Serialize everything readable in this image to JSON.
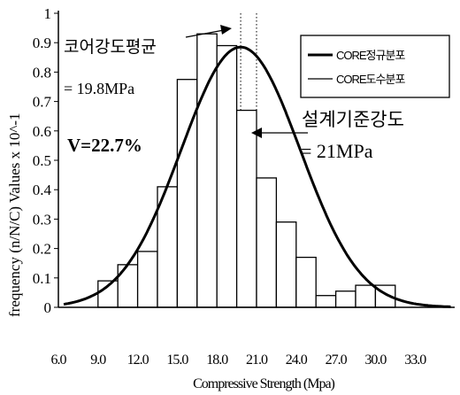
{
  "chart_data": {
    "type": "bar",
    "xlabel": "Compressive Strength (Mpa)",
    "ylabel": "frequency (n/N/C) Values x 10^-1",
    "ylim": [
      0,
      1
    ],
    "yticks": [
      "0",
      "0.1",
      "0.2",
      "0.3",
      "0.4",
      "0.5",
      "0.6",
      "0.7",
      "0.8",
      "0.9",
      "1"
    ],
    "xlim": [
      6,
      36
    ],
    "xticks": [
      "6.0",
      "9.0",
      "12.0",
      "15.0",
      "18.0",
      "21.0",
      "24.0",
      "27.0",
      "30.0",
      "33.0"
    ],
    "bin_width": 1.5,
    "bins": [
      {
        "x": 9.75,
        "value": 0.09
      },
      {
        "x": 11.25,
        "value": 0.145
      },
      {
        "x": 12.75,
        "value": 0.19
      },
      {
        "x": 14.25,
        "value": 0.41
      },
      {
        "x": 15.75,
        "value": 0.775
      },
      {
        "x": 17.25,
        "value": 0.93
      },
      {
        "x": 18.75,
        "value": 0.89
      },
      {
        "x": 20.25,
        "value": 0.67
      },
      {
        "x": 21.75,
        "value": 0.44
      },
      {
        "x": 23.25,
        "value": 0.29
      },
      {
        "x": 24.75,
        "value": 0.17
      },
      {
        "x": 26.25,
        "value": 0.04
      },
      {
        "x": 27.75,
        "value": 0.055
      },
      {
        "x": 29.25,
        "value": 0.075
      },
      {
        "x": 30.75,
        "value": 0.075
      }
    ],
    "series": [
      {
        "name": "CORE정규분포",
        "type": "line",
        "mean": 19.8,
        "std": 4.5,
        "peak": 0.885
      }
    ],
    "legend": {
      "position": "top-right",
      "entries": [
        "CORE정규분포",
        "CORE도수분포"
      ]
    },
    "annotations": {
      "mean_label": "코어강도평균",
      "mean_value": "= 19.8MPa",
      "cv": "V=22.7%",
      "design_label": "설계기준강도",
      "design_value": "= 21MPa"
    },
    "reference_lines": [
      {
        "x": 19.8
      },
      {
        "x": 21
      }
    ]
  }
}
